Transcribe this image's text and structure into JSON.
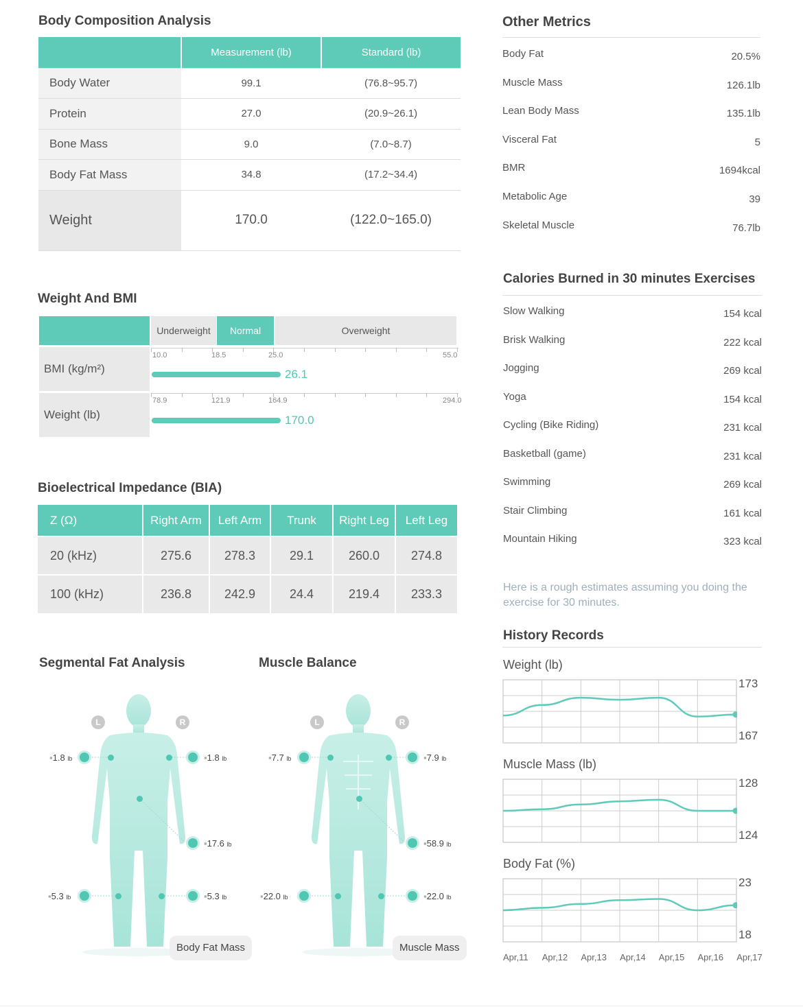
{
  "body_composition": {
    "title": "Body Composition Analysis",
    "col_measurement": "Measurement (lb)",
    "col_standard": "Standard (lb)",
    "rows": [
      {
        "label": "Body Water",
        "measurement": "99.1",
        "standard": "(76.8~95.7)"
      },
      {
        "label": "Protein",
        "measurement": "27.0",
        "standard": "(20.9~26.1)"
      },
      {
        "label": "Bone Mass",
        "measurement": "9.0",
        "standard": "(7.0~8.7)"
      },
      {
        "label": "Body Fat Mass",
        "measurement": "34.8",
        "standard": "(17.2~34.4)"
      },
      {
        "label": "Weight",
        "measurement": "170.0",
        "standard": "(122.0~165.0)"
      }
    ]
  },
  "other_metrics": {
    "title": "Other Metrics",
    "items": [
      {
        "label": "Body Fat",
        "value": "20.5%"
      },
      {
        "label": "Muscle Mass",
        "value": "126.1lb"
      },
      {
        "label": "Lean Body Mass",
        "value": "135.1lb"
      },
      {
        "label": "Visceral Fat",
        "value": "5"
      },
      {
        "label": "BMR",
        "value": "1694kcal"
      },
      {
        "label": "Metabolic Age",
        "value": "39"
      },
      {
        "label": "Skeletal Muscle",
        "value": "76.7lb"
      }
    ]
  },
  "weight_bmi": {
    "title": "Weight And BMI",
    "categories": [
      "Underweight",
      "Normal",
      "Overweight"
    ],
    "bmi": {
      "label": "BMI (kg/m²)",
      "ticks": [
        "10.0",
        "18.5",
        "25.0",
        "55.0"
      ],
      "value": "26.1",
      "fraction": 0.42
    },
    "weight": {
      "label": "Weight (lb)",
      "ticks": [
        "78.9",
        "121.9",
        "164.9",
        "294.0"
      ],
      "value": "170.0",
      "fraction": 0.42
    }
  },
  "calories": {
    "title": "Calories Burned in 30 minutes Exercises",
    "items": [
      {
        "label": "Slow Walking",
        "value": "154 kcal"
      },
      {
        "label": "Brisk Walking",
        "value": "222 kcal"
      },
      {
        "label": "Jogging",
        "value": "269 kcal"
      },
      {
        "label": "Yoga",
        "value": "154 kcal"
      },
      {
        "label": "Cycling (Bike Riding)",
        "value": "231 kcal"
      },
      {
        "label": "Basketball (game)",
        "value": "231 kcal"
      },
      {
        "label": "Swimming",
        "value": "269 kcal"
      },
      {
        "label": "Stair Climbing",
        "value": "161 kcal"
      },
      {
        "label": "Mountain Hiking",
        "value": "323 kcal"
      }
    ],
    "note": "Here is a rough estimates assuming you doing the exercise for 30 minutes."
  },
  "bia": {
    "title": "Bioelectrical Impedance (BIA)",
    "headers": [
      "Z (Ω)",
      "Right Arm",
      "Left Arm",
      "Trunk",
      "Right Leg",
      "Left Leg"
    ],
    "rows": [
      [
        "20 (kHz)",
        "275.6",
        "278.3",
        "29.1",
        "260.0",
        "274.8"
      ],
      [
        "100 (kHz)",
        "236.8",
        "242.9",
        "24.4",
        "219.4",
        "233.3"
      ]
    ]
  },
  "segmental_fat": {
    "title": "Segmental Fat Analysis",
    "left_arm": "1.8",
    "right_arm": "1.8",
    "trunk": "17.6",
    "left_leg": "5.3",
    "right_leg": "5.3",
    "unit": "lb",
    "pill": "Body Fat Mass",
    "left_marker": "L",
    "right_marker": "R"
  },
  "muscle_balance": {
    "title": "Muscle Balance",
    "left_arm": "7.7",
    "right_arm": "7.9",
    "trunk": "58.9",
    "left_leg": "22.0",
    "right_leg": "22.0",
    "unit": "lb",
    "pill": "Muscle Mass",
    "left_marker": "L",
    "right_marker": "R"
  },
  "history": {
    "title": "History Records",
    "dates": [
      "Apr,11",
      "Apr,12",
      "Apr,13",
      "Apr,14",
      "Apr,15",
      "Apr,16",
      "Apr,17"
    ]
  },
  "chart_data": [
    {
      "type": "line",
      "title": "Weight (lb)",
      "x": [
        "Apr,11",
        "Apr,12",
        "Apr,13",
        "Apr,14",
        "Apr,15",
        "Apr,16",
        "Apr,17"
      ],
      "values": [
        169.6,
        170.6,
        171.3,
        171.1,
        171.3,
        169.5,
        169.7
      ],
      "ylim": [
        167,
        173
      ],
      "color": "#5ecbb8"
    },
    {
      "type": "line",
      "title": "Muscle Mass (lb)",
      "x": [
        "Apr,11",
        "Apr,12",
        "Apr,13",
        "Apr,14",
        "Apr,15",
        "Apr,16",
        "Apr,17"
      ],
      "values": [
        126.0,
        126.1,
        126.4,
        126.6,
        126.7,
        126.0,
        126.0
      ],
      "ylim": [
        124,
        128
      ],
      "color": "#5ecbb8"
    },
    {
      "type": "line",
      "title": "Body Fat (%)",
      "x": [
        "Apr,11",
        "Apr,12",
        "Apr,13",
        "Apr,14",
        "Apr,15",
        "Apr,16",
        "Apr,17"
      ],
      "values": [
        20.5,
        20.7,
        21.0,
        21.3,
        21.4,
        20.5,
        20.9
      ],
      "ylim": [
        18,
        23
      ],
      "color": "#5ecbb8"
    }
  ]
}
